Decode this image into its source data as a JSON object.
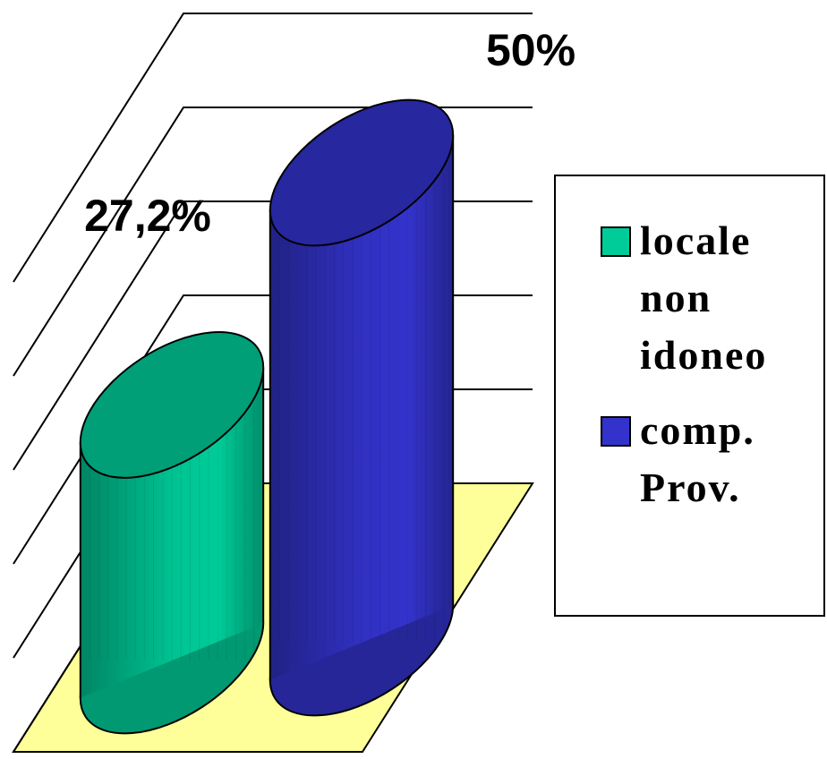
{
  "chart_data": {
    "type": "bar3d",
    "categories": [
      null
    ],
    "series": [
      {
        "name": "locale non idoneo",
        "color": "#00cc99",
        "values": [
          27.2
        ],
        "value_labels": [
          "27,2%"
        ]
      },
      {
        "name": "comp. Prov.",
        "color": "#3333cc",
        "values": [
          50
        ],
        "value_labels": [
          "50%"
        ]
      }
    ],
    "ylim": [
      0,
      50
    ],
    "yticks": [
      0,
      10,
      20,
      30,
      40,
      50
    ],
    "grid": true,
    "floor_color": "#ffff99",
    "legend": "right"
  }
}
